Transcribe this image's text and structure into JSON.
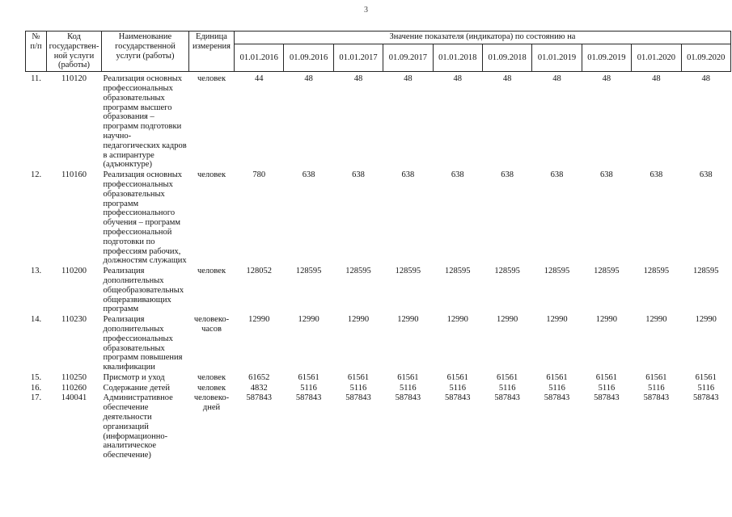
{
  "page": {
    "number": "3"
  },
  "table": {
    "header": {
      "col_num": "№\nп/п",
      "col_code": "Код\nгосударствен-\nной услуги\n(работы)",
      "col_name": "Наименование\nгосударственной\nуслуги (работы)",
      "col_unit": "Единица\nизмерения",
      "values_title": "Значение показателя (индикатора) по состоянию на",
      "dates": [
        "01.01.2016",
        "01.09.2016",
        "01.01.2017",
        "01.09.2017",
        "01.01.2018",
        "01.09.2018",
        "01.01.2019",
        "01.09.2019",
        "01.01.2020",
        "01.09.2020"
      ]
    },
    "rows": [
      {
        "num": "11.",
        "code": "110120",
        "name": "Реализация основных профессиональных образовательных программ высшего образования – программ подготовки научно-педагогических кадров в аспирантуре (адъюнктуре)",
        "unit": "человек",
        "values": [
          "44",
          "48",
          "48",
          "48",
          "48",
          "48",
          "48",
          "48",
          "48",
          "48"
        ]
      },
      {
        "num": "12.",
        "code": "110160",
        "name": "Реализация основных профессиональных образовательных программ профессионального обучения – программ профессиональной подготовки по профессиям рабочих, должностям служащих",
        "unit": "человек",
        "values": [
          "780",
          "638",
          "638",
          "638",
          "638",
          "638",
          "638",
          "638",
          "638",
          "638"
        ]
      },
      {
        "num": "13.",
        "code": "110200",
        "name": "Реализация дополнительных общеобразовательных общеразвивающих программ",
        "unit": "человек",
        "values": [
          "128052",
          "128595",
          "128595",
          "128595",
          "128595",
          "128595",
          "128595",
          "128595",
          "128595",
          "128595"
        ]
      },
      {
        "num": "14.",
        "code": "110230",
        "name": "Реализация дополнительных профессиональных образовательных программ повышения квалификации",
        "unit": "человеко-часов",
        "values": [
          "12990",
          "12990",
          "12990",
          "12990",
          "12990",
          "12990",
          "12990",
          "12990",
          "12990",
          "12990"
        ]
      },
      {
        "num": "15.",
        "code": "110250",
        "name": "Присмотр и уход",
        "unit": "человек",
        "values": [
          "61652",
          "61561",
          "61561",
          "61561",
          "61561",
          "61561",
          "61561",
          "61561",
          "61561",
          "61561"
        ]
      },
      {
        "num": "16.",
        "code": "110260",
        "name": "Содержание детей",
        "unit": "человек",
        "values": [
          "4832",
          "5116",
          "5116",
          "5116",
          "5116",
          "5116",
          "5116",
          "5116",
          "5116",
          "5116"
        ]
      },
      {
        "num": "17.",
        "code": "140041",
        "name": "Административное обеспечение деятельности организаций (информационно-аналитическое обеспечение)",
        "unit": "человеко-дней",
        "values": [
          "587843",
          "587843",
          "587843",
          "587843",
          "587843",
          "587843",
          "587843",
          "587843",
          "587843",
          "587843"
        ]
      }
    ]
  }
}
